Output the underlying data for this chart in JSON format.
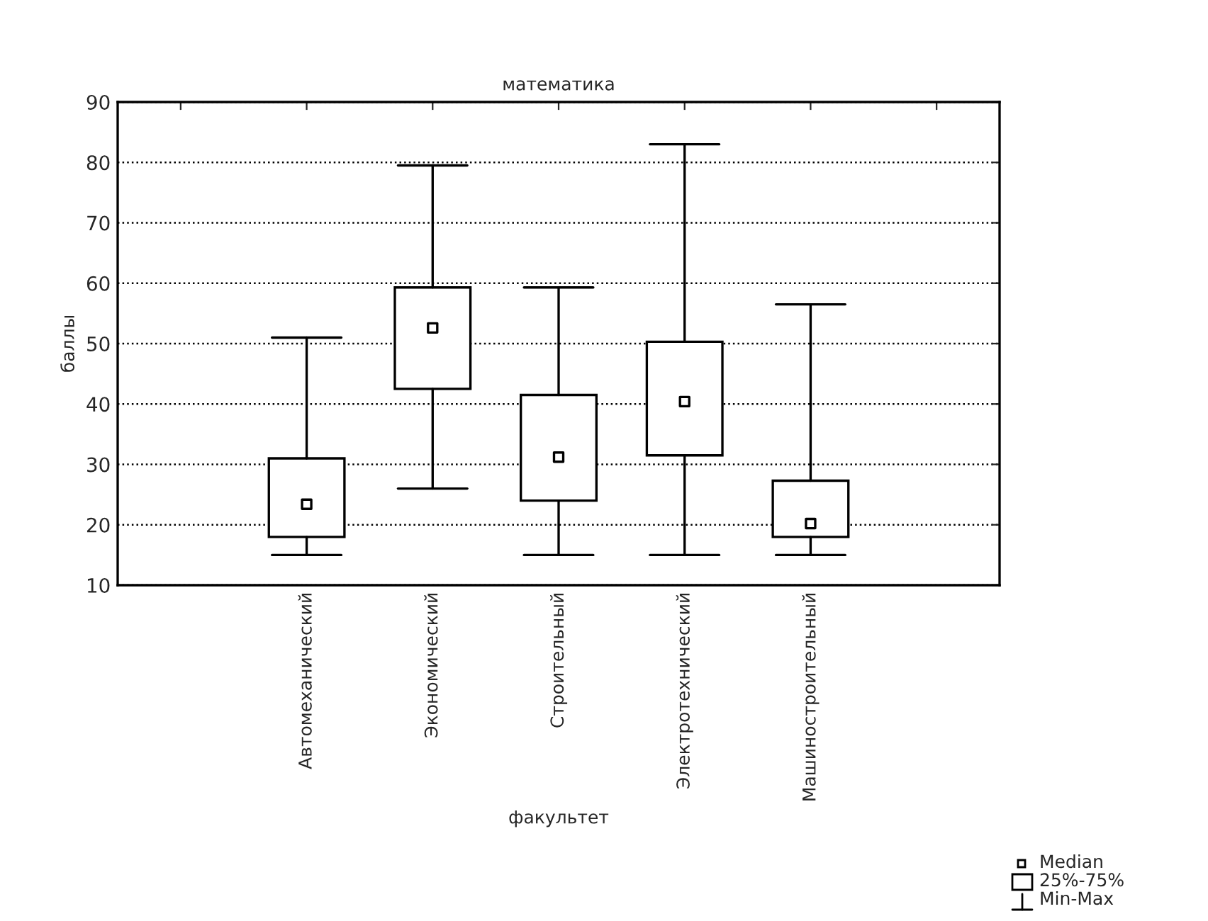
{
  "chart_data": {
    "type": "box",
    "title": "математика",
    "xlabel": "факультет",
    "ylabel": "баллы",
    "categories": [
      null,
      "Автомеханический",
      "Экономический",
      "Строительный",
      "Электротехнический",
      "Машиностроительный",
      null
    ],
    "boxes": [
      null,
      {
        "low": 15,
        "q1": 18,
        "median": 23.4,
        "q3": 31,
        "high": 51
      },
      {
        "low": 26,
        "q1": 42.5,
        "median": 52.6,
        "q3": 59.3,
        "high": 79.5
      },
      {
        "low": 15,
        "q1": 24,
        "median": 31.2,
        "q3": 41.5,
        "high": 59.3
      },
      {
        "low": 15,
        "q1": 31.5,
        "median": 40.4,
        "q3": 50.3,
        "high": 83
      },
      {
        "low": 15,
        "q1": 18,
        "median": 20.2,
        "q3": 27.3,
        "high": 56.5
      },
      null
    ],
    "color": "#ffffff",
    "ylim": [
      10,
      90
    ],
    "yticks": [
      10,
      20,
      30,
      40,
      50,
      60,
      70,
      80,
      90
    ],
    "grid": "y",
    "annotations": [
      "Median",
      "25%-75%",
      "Min-Max"
    ]
  }
}
